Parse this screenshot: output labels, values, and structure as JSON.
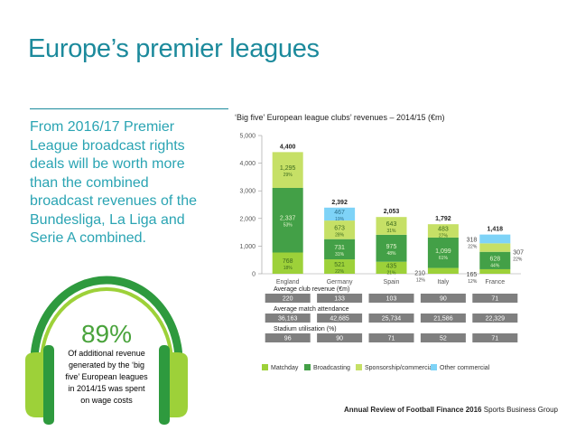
{
  "page": {
    "title": "Europe’s premier leagues",
    "intro_lines": [
      "From 2016/17 Premier",
      "League broadcast rights",
      "deals will be worth more",
      "than the combined",
      "broadcast revenues of the",
      "Bundesliga, La Liga and",
      "Serie A combined."
    ],
    "stat": {
      "value": "89%",
      "text_lines": [
        "Of additional revenue",
        "generated by the ‘big",
        "five’ European leagues",
        "in 2014/15 was spent",
        "on wage costs"
      ]
    },
    "footer": {
      "bold": "Annual Review of Football Finance 2016",
      "normal": "Sports Business Group"
    }
  },
  "colors": {
    "matchday": "#9dd139",
    "broadcasting": "#43a047",
    "sponsorship": "#c6e066",
    "other": "#7ed3f7",
    "teal": "#1c8a9c",
    "stat_green": "#49a33b",
    "table_grey": "#7f7f7f",
    "axis_text": "#555555"
  },
  "chart_data": {
    "type": "bar",
    "stacked": true,
    "title": "‘Big five’ European league clubs’ revenues – 2014/15 (€m)",
    "categories": [
      "England",
      "Germany",
      "Spain",
      "Italy",
      "France"
    ],
    "ylim": [
      0,
      5000
    ],
    "yticks": [
      0,
      1000,
      2000,
      3000,
      4000,
      5000
    ],
    "ytick_labels": [
      "0",
      "1,000",
      "2,000",
      "3,000",
      "4,000",
      "5,000"
    ],
    "totals": [
      "4,400",
      "2,392",
      "2,053",
      "1,792",
      "1,418"
    ],
    "series": [
      {
        "name": "Matchday",
        "color_key": "matchday",
        "values": [
          768,
          521,
          435,
          210,
          165
        ],
        "labels": [
          "768",
          "521",
          "435",
          "210",
          "165"
        ],
        "pct": [
          "18%",
          "22%",
          "21%",
          "12%",
          "12%"
        ]
      },
      {
        "name": "Broadcasting",
        "color_key": "broadcasting",
        "values": [
          2337,
          731,
          975,
          1099,
          628
        ],
        "labels": [
          "2,337",
          "731",
          "975",
          "1,099",
          "628"
        ],
        "pct": [
          "53%",
          "31%",
          "48%",
          "61%",
          "44%"
        ]
      },
      {
        "name": "Sponsorship/commercial",
        "color_key": "sponsorship",
        "values": [
          1295,
          673,
          643,
          483,
          307
        ],
        "labels": [
          "1,295",
          "673",
          "643",
          "483",
          "307"
        ],
        "pct": [
          "29%",
          "28%",
          "31%",
          "27%",
          "22%"
        ]
      },
      {
        "name": "Other commercial",
        "color_key": "other",
        "values": [
          0,
          467,
          0,
          0,
          318
        ],
        "labels": [
          "",
          "467",
          "",
          "",
          "318"
        ],
        "pct": [
          "",
          "19%",
          "",
          "",
          "22%"
        ]
      }
    ],
    "tables": [
      {
        "label": "Average club revenue (€m)",
        "values": [
          "220",
          "133",
          "103",
          "90",
          "71"
        ]
      },
      {
        "label": "Average match attendance",
        "values": [
          "36,163",
          "42,685",
          "25,734",
          "21,586",
          "22,329"
        ]
      },
      {
        "label": "Stadium utilisation (%)",
        "values": [
          "96",
          "90",
          "71",
          "52",
          "71"
        ]
      }
    ],
    "legend": [
      "Matchday",
      "Broadcasting",
      "Sponsorship/commercial",
      "Other commercial"
    ],
    "legend_position": "bottom"
  }
}
